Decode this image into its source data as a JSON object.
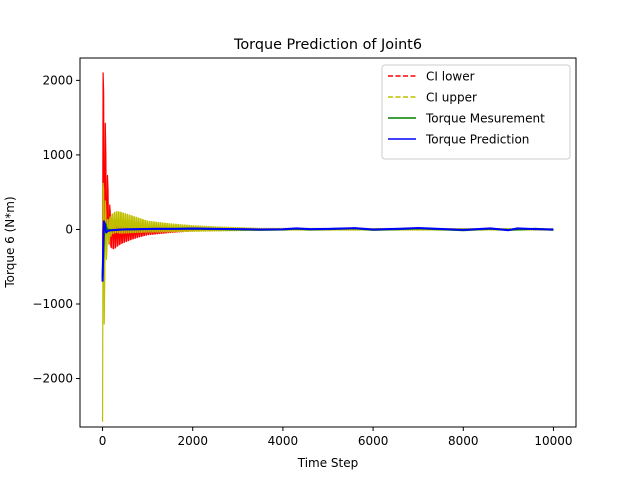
{
  "chart_data": {
    "type": "line",
    "title": "Torque Prediction of Joint6",
    "xlabel": "Time Step",
    "ylabel": "Torque 6 (N*m)",
    "xlim": [
      -500,
      10500
    ],
    "ylim": [
      -2650,
      2300
    ],
    "xticks": [
      0,
      2000,
      4000,
      6000,
      8000,
      10000
    ],
    "yticks": [
      -2000,
      -1000,
      0,
      1000,
      2000
    ],
    "xtick_labels": [
      "0",
      "2000",
      "4000",
      "6000",
      "8000",
      "10000"
    ],
    "ytick_labels": [
      "−2000",
      "−1000",
      "0",
      "1000",
      "2000"
    ],
    "grid": false,
    "legend_position": "top-right",
    "series": [
      {
        "name": "CI lower",
        "color": "#ff0000",
        "style": "dashed",
        "envelope_x": [
          0,
          20,
          40,
          60,
          80,
          100,
          150,
          200,
          250,
          300,
          400,
          600,
          800,
          1000,
          1500,
          2000,
          2500,
          3000,
          3500,
          10000
        ],
        "envelope_lower": [
          -600,
          -300,
          -350,
          -250,
          -200,
          -150,
          -200,
          -250,
          -260,
          -230,
          -190,
          -140,
          -100,
          -70,
          -40,
          -20,
          -10,
          -5,
          -3,
          -3
        ],
        "envelope_upper": [
          2100,
          1900,
          1600,
          1200,
          900,
          700,
          300,
          150,
          100,
          60,
          40,
          30,
          25,
          22,
          18,
          15,
          12,
          10,
          8,
          8
        ]
      },
      {
        "name": "CI upper",
        "color": "#bfbf00",
        "style": "dashed",
        "envelope_x": [
          0,
          20,
          40,
          60,
          80,
          100,
          150,
          200,
          300,
          400,
          600,
          800,
          1000,
          1500,
          2000,
          2500,
          3000,
          3500,
          10000
        ],
        "envelope_lower": [
          -2580,
          -1400,
          -800,
          -500,
          -350,
          -250,
          -120,
          -60,
          -40,
          -50,
          -45,
          -40,
          -35,
          -30,
          -25,
          -20,
          -15,
          -10,
          -10
        ],
        "envelope_upper": [
          620,
          550,
          450,
          300,
          200,
          120,
          150,
          200,
          240,
          230,
          190,
          150,
          110,
          75,
          50,
          35,
          25,
          15,
          10
        ]
      },
      {
        "name": "Torque Mesurement",
        "color": "#008000",
        "style": "solid",
        "x": [
          0,
          20,
          40,
          60,
          100,
          200,
          500,
          1000,
          1500,
          2000,
          2500,
          3000,
          3500,
          4000,
          4300,
          4600,
          5000,
          5600,
          6000,
          6600,
          7000,
          7600,
          8000,
          8600,
          9000,
          9600,
          10000
        ],
        "y": [
          -650,
          -300,
          50,
          80,
          0,
          -10,
          0,
          5,
          8,
          10,
          5,
          0,
          -5,
          0,
          10,
          0,
          5,
          15,
          -5,
          5,
          15,
          0,
          -10,
          10,
          -5,
          10,
          -5
        ]
      },
      {
        "name": "Torque Prediction",
        "color": "#0000ff",
        "style": "solid",
        "x": [
          0,
          10,
          20,
          30,
          50,
          80,
          120,
          200,
          400,
          800,
          1200,
          1600,
          2000,
          2500,
          3000,
          3500,
          4000,
          4300,
          4600,
          5000,
          5600,
          6000,
          6600,
          7000,
          7600,
          8000,
          8600,
          9000,
          9200,
          9600,
          10000
        ],
        "y": [
          -700,
          -400,
          -50,
          110,
          60,
          -40,
          -20,
          -10,
          0,
          5,
          10,
          8,
          12,
          8,
          5,
          0,
          3,
          15,
          5,
          8,
          18,
          0,
          10,
          20,
          5,
          -5,
          15,
          -10,
          15,
          5,
          0
        ]
      }
    ]
  }
}
